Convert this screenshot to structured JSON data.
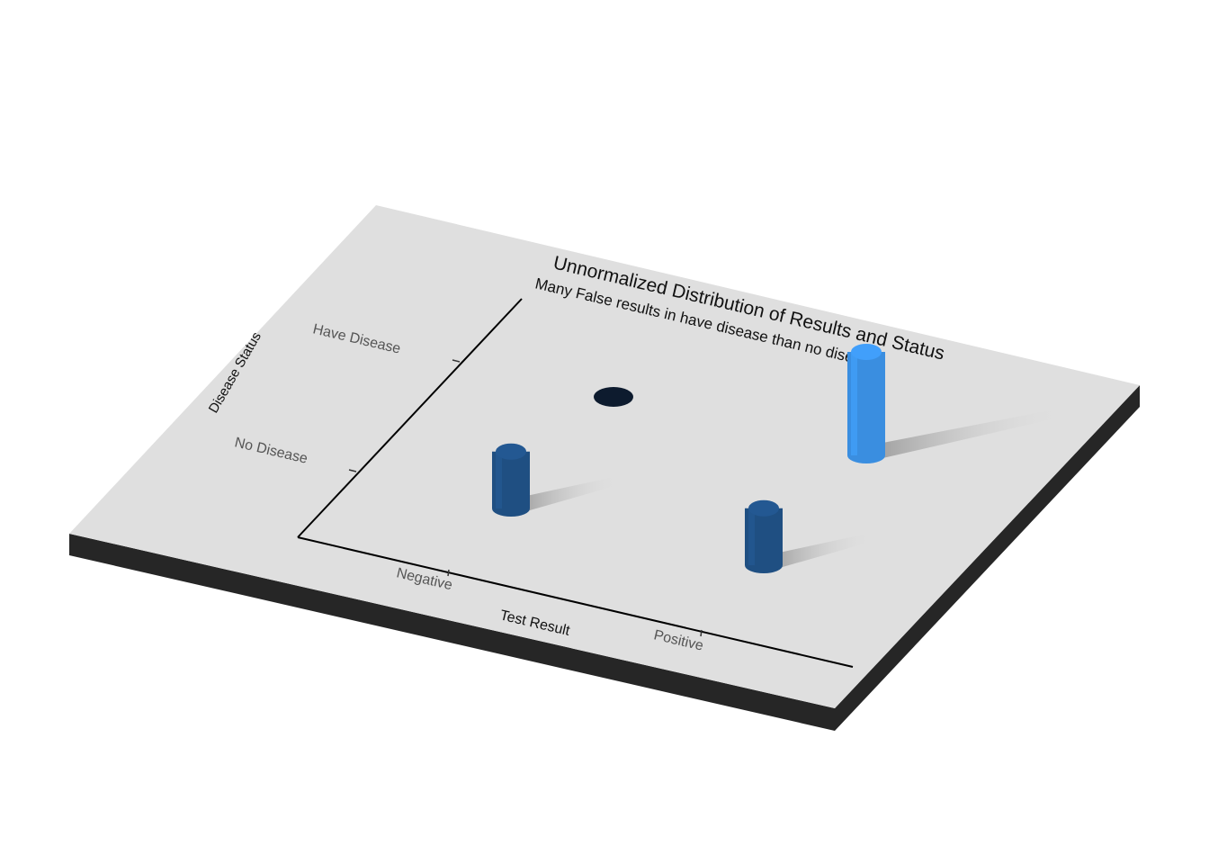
{
  "chart_data": {
    "type": "scatter",
    "render": "3d-extruded",
    "title": "Unnormalized Distribution of Results and Status",
    "subtitle": "Many False results in have disease than no disease",
    "xlabel": "Test Result",
    "ylabel": "Disease Status",
    "x_categories": [
      "Negative",
      "Positive"
    ],
    "y_categories": [
      "No Disease",
      "Have Disease"
    ],
    "points": [
      {
        "x": "Negative",
        "y": "No Disease",
        "count": 0.55,
        "color": "#1f4f82"
      },
      {
        "x": "Positive",
        "y": "No Disease",
        "count": 0.55,
        "color": "#1f4f82"
      },
      {
        "x": "Negative",
        "y": "Have Disease",
        "count": 0.0,
        "color": "#0d1b2e"
      },
      {
        "x": "Positive",
        "y": "Have Disease",
        "count": 1.0,
        "color": "#3a8ee0"
      }
    ],
    "colors": {
      "plate_top": "#dfdfdf",
      "plate_side": "#262626",
      "axis": "#000000",
      "shadow": "#9e9e9e"
    }
  }
}
